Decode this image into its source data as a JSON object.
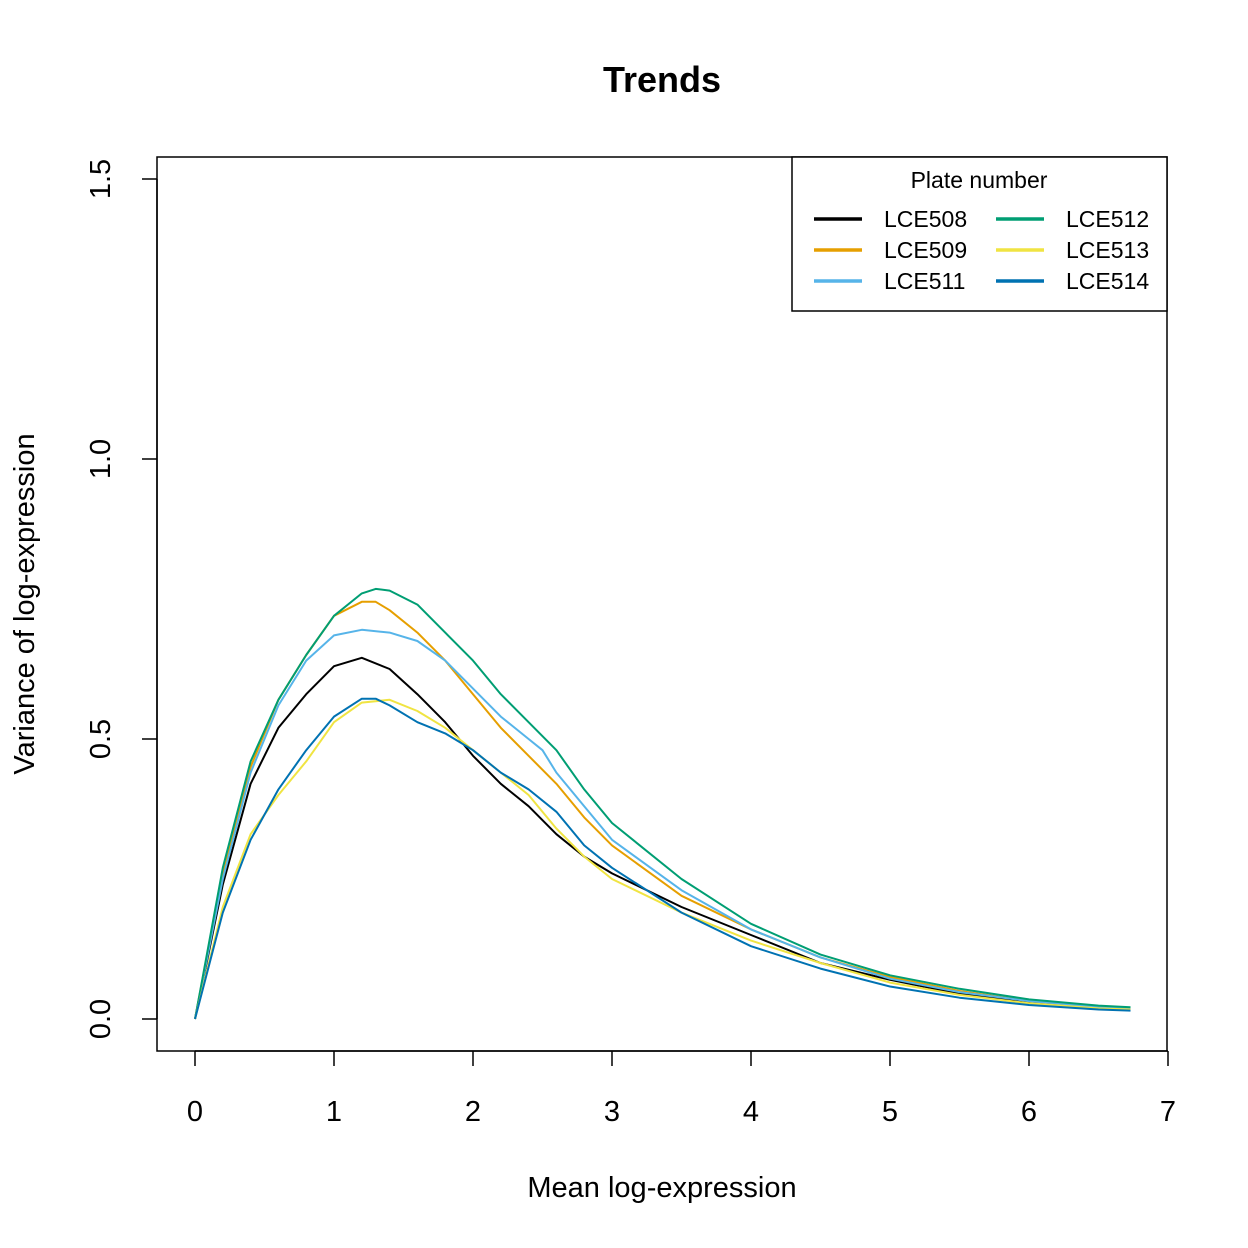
{
  "chart_data": {
    "type": "line",
    "title": "Trends",
    "xlabel": "Mean log-expression",
    "ylabel": "Variance of log-expression",
    "xlim": [
      0,
      7
    ],
    "ylim": [
      0,
      1.5
    ],
    "x_ticks": [
      "0",
      "1",
      "2",
      "3",
      "4",
      "5",
      "6",
      "7"
    ],
    "y_ticks": [
      "0.0",
      "0.5",
      "1.0",
      "1.5"
    ],
    "grid": false,
    "legend": {
      "title": "Plate number",
      "position": "top-right",
      "columns": 2
    },
    "series": [
      {
        "name": "LCE508",
        "color": "#000000",
        "x": [
          0,
          0.2,
          0.4,
          0.6,
          0.8,
          1.0,
          1.2,
          1.4,
          1.6,
          1.8,
          2.0,
          2.2,
          2.4,
          2.6,
          2.8,
          3.0,
          3.5,
          4.0,
          4.5,
          5.0,
          5.5,
          6.0,
          6.5,
          6.73
        ],
        "y": [
          0,
          0.24,
          0.42,
          0.52,
          0.58,
          0.63,
          0.645,
          0.625,
          0.58,
          0.53,
          0.47,
          0.42,
          0.38,
          0.33,
          0.29,
          0.26,
          0.2,
          0.15,
          0.1,
          0.07,
          0.045,
          0.03,
          0.02,
          0.018
        ]
      },
      {
        "name": "LCE509",
        "color": "#E69F00",
        "x": [
          0,
          0.2,
          0.4,
          0.6,
          0.8,
          1.0,
          1.2,
          1.3,
          1.4,
          1.6,
          1.8,
          2.0,
          2.2,
          2.4,
          2.6,
          2.8,
          3.0,
          3.5,
          4.0,
          4.5,
          5.0,
          5.5,
          6.0,
          6.5,
          6.73
        ],
        "y": [
          0,
          0.26,
          0.45,
          0.57,
          0.65,
          0.72,
          0.745,
          0.745,
          0.73,
          0.69,
          0.64,
          0.58,
          0.52,
          0.47,
          0.42,
          0.36,
          0.31,
          0.22,
          0.16,
          0.11,
          0.075,
          0.05,
          0.032,
          0.022,
          0.02
        ]
      },
      {
        "name": "LCE511",
        "color": "#56B4E9",
        "x": [
          0,
          0.2,
          0.4,
          0.6,
          0.8,
          1.0,
          1.2,
          1.4,
          1.6,
          1.8,
          2.0,
          2.2,
          2.4,
          2.5,
          2.6,
          2.8,
          3.0,
          3.5,
          4.0,
          4.5,
          5.0,
          5.5,
          6.0,
          6.5,
          6.73
        ],
        "y": [
          0,
          0.25,
          0.44,
          0.56,
          0.64,
          0.685,
          0.695,
          0.69,
          0.675,
          0.64,
          0.59,
          0.54,
          0.5,
          0.48,
          0.44,
          0.38,
          0.32,
          0.23,
          0.16,
          0.11,
          0.072,
          0.048,
          0.032,
          0.022,
          0.02
        ]
      },
      {
        "name": "LCE512",
        "color": "#009E73",
        "x": [
          0,
          0.2,
          0.4,
          0.6,
          0.8,
          1.0,
          1.2,
          1.3,
          1.4,
          1.6,
          1.8,
          2.0,
          2.2,
          2.4,
          2.6,
          2.8,
          3.0,
          3.5,
          4.0,
          4.5,
          5.0,
          5.5,
          6.0,
          6.5,
          6.73
        ],
        "y": [
          0,
          0.27,
          0.46,
          0.57,
          0.65,
          0.72,
          0.76,
          0.768,
          0.765,
          0.74,
          0.69,
          0.64,
          0.58,
          0.53,
          0.48,
          0.41,
          0.35,
          0.25,
          0.17,
          0.115,
          0.078,
          0.054,
          0.035,
          0.024,
          0.021
        ]
      },
      {
        "name": "LCE513",
        "color": "#F0E442",
        "x": [
          0,
          0.2,
          0.4,
          0.6,
          0.8,
          1.0,
          1.2,
          1.4,
          1.6,
          1.8,
          2.0,
          2.2,
          2.4,
          2.6,
          2.8,
          3.0,
          3.5,
          4.0,
          4.5,
          5.0,
          5.5,
          6.0,
          6.5,
          6.73
        ],
        "y": [
          0,
          0.2,
          0.33,
          0.4,
          0.46,
          0.53,
          0.565,
          0.57,
          0.55,
          0.52,
          0.48,
          0.44,
          0.4,
          0.34,
          0.29,
          0.25,
          0.19,
          0.14,
          0.1,
          0.065,
          0.043,
          0.028,
          0.019,
          0.017
        ]
      },
      {
        "name": "LCE514",
        "color": "#0072B2",
        "x": [
          0,
          0.2,
          0.4,
          0.6,
          0.8,
          1.0,
          1.2,
          1.3,
          1.4,
          1.6,
          1.8,
          2.0,
          2.2,
          2.4,
          2.6,
          2.8,
          3.0,
          3.5,
          4.0,
          4.5,
          5.0,
          5.5,
          6.0,
          6.5,
          6.73
        ],
        "y": [
          0,
          0.19,
          0.32,
          0.41,
          0.48,
          0.54,
          0.572,
          0.572,
          0.56,
          0.53,
          0.51,
          0.48,
          0.44,
          0.41,
          0.37,
          0.31,
          0.27,
          0.19,
          0.13,
          0.09,
          0.058,
          0.038,
          0.025,
          0.017,
          0.015
        ]
      }
    ]
  }
}
